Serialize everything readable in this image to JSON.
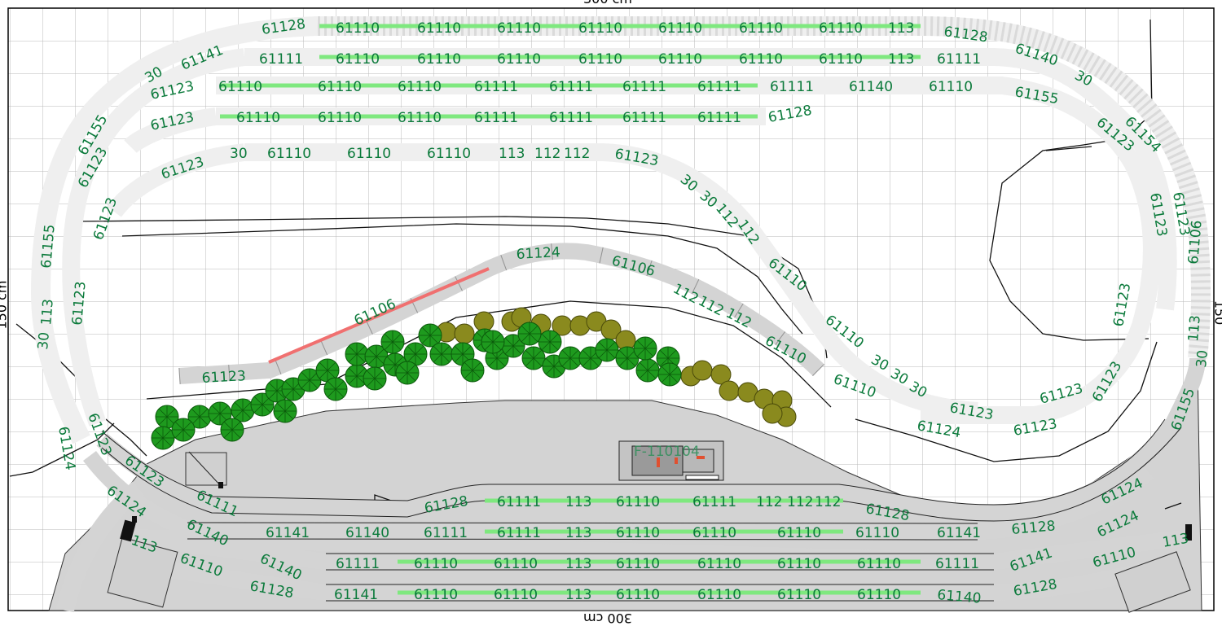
{
  "dimensions": {
    "top": "300 cm",
    "bottom": "300 cm",
    "left": "150 cm",
    "right": "150 cm"
  },
  "building_label": "F-110104",
  "colors": {
    "track_label": "#0b7a3b",
    "upper_track_fill": "#efefef",
    "lower_track_fill": "#d4d4d4",
    "station_area": "#d0d0d0",
    "siding_highlight": "#7fe87f",
    "track_highlight_red": "#f07070",
    "tree_dark": "#1e9a1e",
    "tree_olive": "#8a8a1e",
    "grid": "#b9b9b9"
  },
  "tracks": {
    "upper_row1": [
      "61128",
      "61110",
      "61110",
      "61110",
      "61110",
      "61110",
      "61110",
      "61110",
      "113",
      "61128",
      "61140",
      "30"
    ],
    "upper_row2": [
      "61141",
      "61111",
      "61110",
      "61110",
      "61110",
      "61110",
      "61110",
      "61110",
      "61110",
      "113",
      "61111"
    ],
    "upper_row3": [
      "30",
      "61123",
      "61110",
      "61110",
      "61110",
      "61111",
      "61111",
      "61111",
      "61111",
      "61111",
      "61140",
      "61110",
      "61155"
    ],
    "upper_row4": [
      "61123",
      "61110",
      "61110",
      "61110",
      "61111",
      "61111",
      "61111",
      "61111",
      "61128"
    ],
    "upper_row5": [
      "61123",
      "30",
      "61110",
      "61110",
      "61110",
      "113",
      "112",
      "112",
      "61123"
    ],
    "left_loop": [
      "61155",
      "61123",
      "61123",
      "61155",
      "61123",
      "113",
      "30",
      "61124",
      "61123"
    ],
    "right_loop": [
      "61123",
      "61154",
      "61123",
      "61123",
      "61106",
      "61123",
      "113",
      "30",
      "61155",
      "61123"
    ],
    "diagonal_down": [
      "30",
      "30",
      "112",
      "112",
      "61110",
      "61110",
      "61110",
      "30",
      "30",
      "30",
      "61123",
      "61123",
      "61124",
      "61123"
    ],
    "mid_curve": [
      "61123",
      "61106",
      "61124",
      "61106",
      "112",
      "112",
      "112",
      "61110"
    ],
    "station_row1": [
      "61123",
      "61111",
      "61128",
      "61111",
      "113",
      "61110",
      "61111",
      "112",
      "112",
      "112",
      "61128",
      "61124"
    ],
    "station_row2": [
      "61124",
      "61140",
      "61141",
      "61140",
      "61111",
      "61111",
      "113",
      "61110",
      "61110",
      "61110",
      "61110",
      "61141",
      "61128",
      "61124"
    ],
    "station_row3": [
      "113",
      "61140",
      "61111",
      "61110",
      "61110",
      "113",
      "61110",
      "61110",
      "61110",
      "61110",
      "61111",
      "61141",
      "61110",
      "113"
    ],
    "station_row4": [
      "61110",
      "61128",
      "61141",
      "61110",
      "61110",
      "113",
      "61110",
      "61110",
      "61110",
      "61110",
      "61140",
      "61128"
    ]
  }
}
